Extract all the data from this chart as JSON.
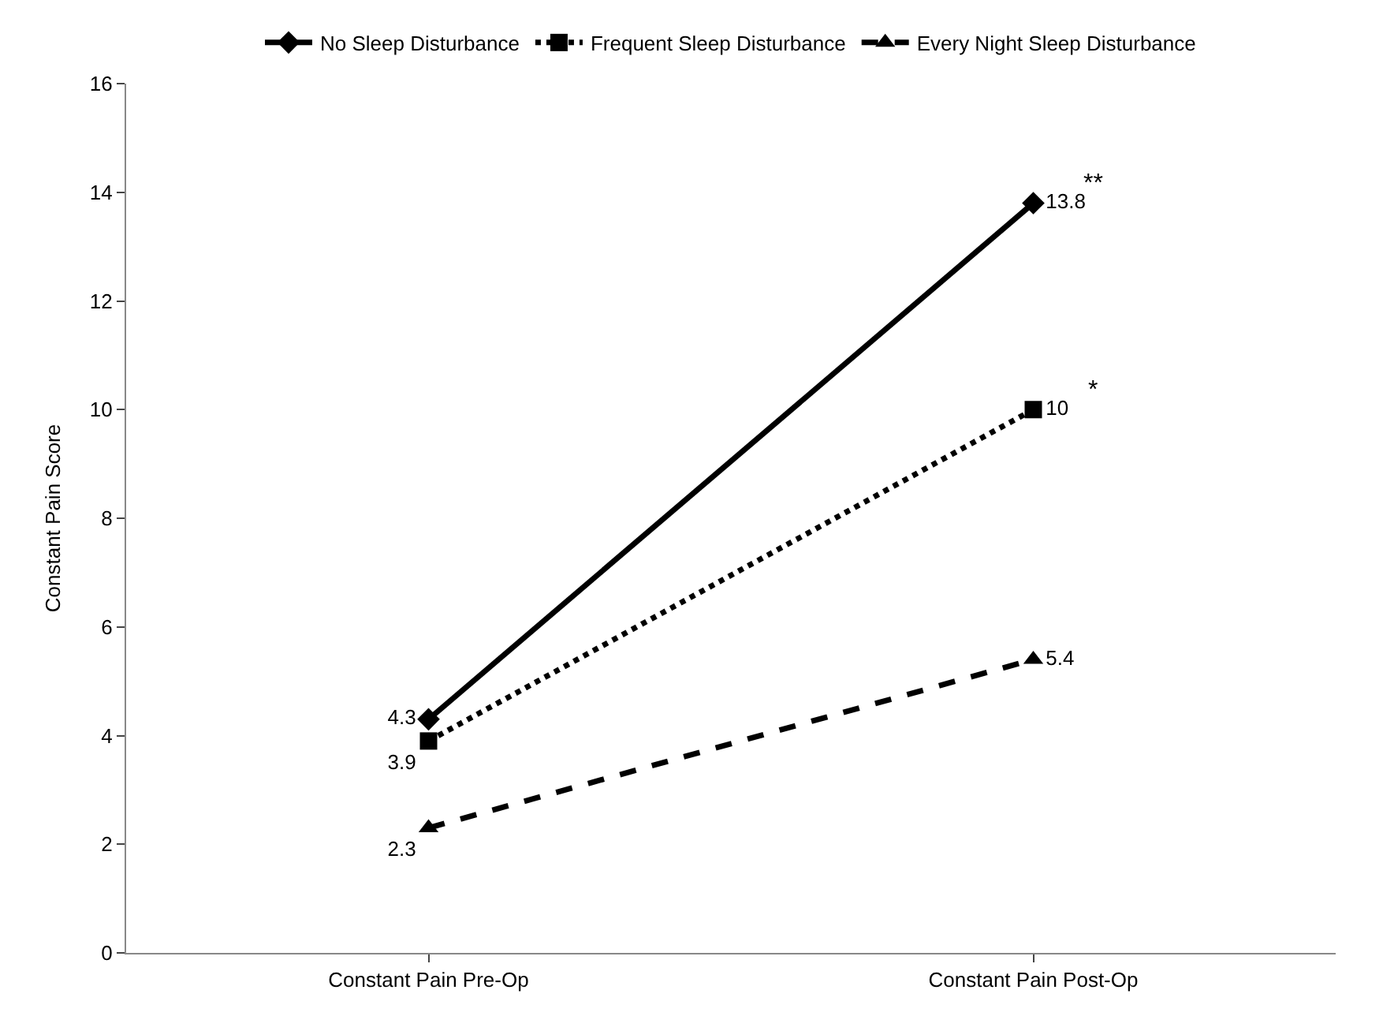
{
  "chart_data": {
    "type": "line",
    "ylabel": "Constant Pain Score",
    "categories": [
      "Constant Pain Pre-Op",
      "Constant Pain Post-Op"
    ],
    "series": [
      {
        "name": "No Sleep Disturbance",
        "color": "#000000",
        "values": [
          4.3,
          13.8
        ],
        "marker": "diamond",
        "line_style": "solid"
      },
      {
        "name": "Frequent Sleep Disturbance",
        "color": "#000000",
        "values": [
          3.9,
          10
        ],
        "marker": "square",
        "line_style": "dotted"
      },
      {
        "name": "Every Night Sleep Disturbance",
        "color": "#000000",
        "values": [
          2.3,
          5.4
        ],
        "marker": "triangle",
        "line_style": "dashed"
      }
    ],
    "ylim": [
      0,
      16
    ],
    "yticks": [
      0,
      2,
      4,
      6,
      8,
      10,
      12,
      14,
      16
    ],
    "legend": "top",
    "data_labels": true,
    "annotations": [
      {
        "text": "**",
        "x": "Constant Pain Post-Op",
        "y": 13.8
      },
      {
        "text": "*",
        "x": "Constant Pain Post-Op",
        "y": 10
      }
    ]
  }
}
